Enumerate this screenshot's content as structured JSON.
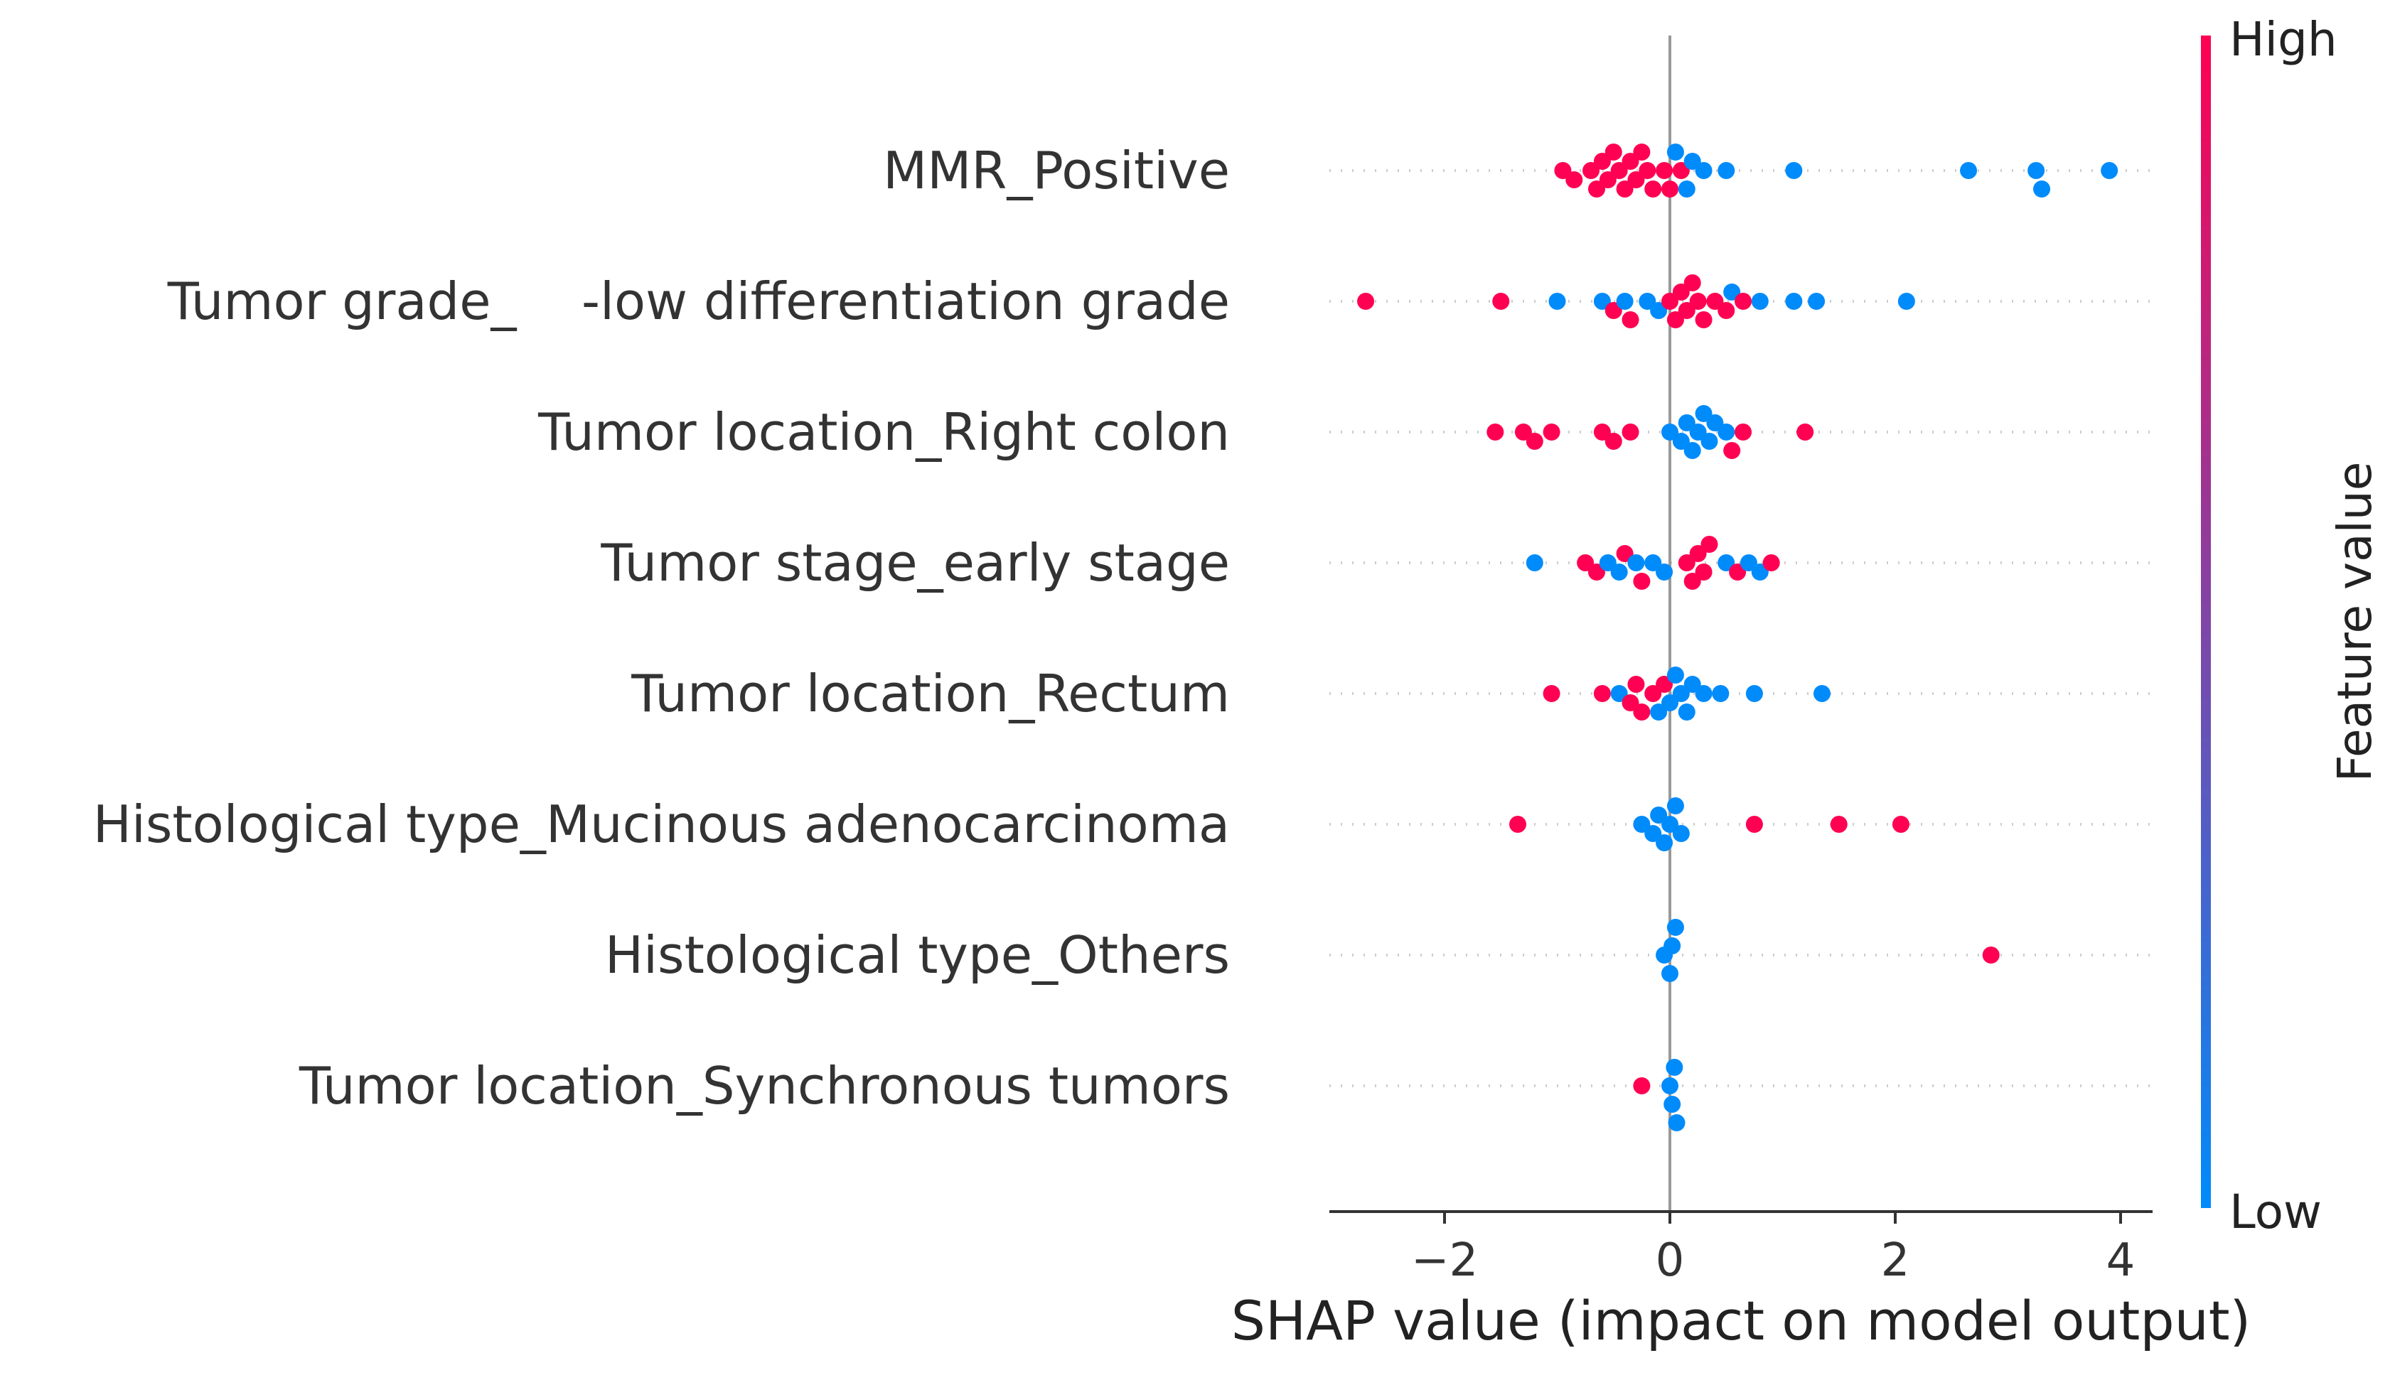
{
  "chart_data": {
    "type": "scatter",
    "subtype": "shap-beeswarm",
    "xlabel": "SHAP value (impact on model output)",
    "xlim": [
      -3.0,
      4.3
    ],
    "xticks": [
      -2,
      0,
      2,
      4
    ],
    "xtick_labels": [
      "−2",
      "0",
      "2",
      "4"
    ],
    "colorbar": {
      "label": "Feature value",
      "high_label": "High",
      "low_label": "Low",
      "high_color": "#ff0052",
      "low_color": "#008bfb"
    },
    "features": [
      {
        "name": "MMR_Positive",
        "points": [
          [
            -0.95,
            "h"
          ],
          [
            -0.85,
            "h"
          ],
          [
            -0.7,
            "h"
          ],
          [
            -0.65,
            "h"
          ],
          [
            -0.6,
            "h"
          ],
          [
            -0.55,
            "h"
          ],
          [
            -0.5,
            "h"
          ],
          [
            -0.45,
            "h"
          ],
          [
            -0.4,
            "h"
          ],
          [
            -0.35,
            "h"
          ],
          [
            -0.3,
            "h"
          ],
          [
            -0.25,
            "h"
          ],
          [
            -0.2,
            "h"
          ],
          [
            -0.15,
            "h"
          ],
          [
            -0.05,
            "h"
          ],
          [
            0.0,
            "h"
          ],
          [
            0.1,
            "h"
          ],
          [
            0.05,
            "l"
          ],
          [
            0.15,
            "l"
          ],
          [
            0.2,
            "l"
          ],
          [
            0.3,
            "l"
          ],
          [
            0.5,
            "l"
          ],
          [
            1.1,
            "l"
          ],
          [
            2.65,
            "l"
          ],
          [
            3.25,
            "l"
          ],
          [
            3.3,
            "l"
          ],
          [
            3.9,
            "l"
          ]
        ]
      },
      {
        "name": "Tumor grade_    -low differentiation grade",
        "points": [
          [
            -2.7,
            "h"
          ],
          [
            -1.5,
            "h"
          ],
          [
            -1.0,
            "l"
          ],
          [
            -0.6,
            "l"
          ],
          [
            -0.5,
            "h"
          ],
          [
            -0.4,
            "l"
          ],
          [
            -0.35,
            "h"
          ],
          [
            -0.2,
            "l"
          ],
          [
            -0.1,
            "l"
          ],
          [
            0.0,
            "h"
          ],
          [
            0.05,
            "h"
          ],
          [
            0.1,
            "h"
          ],
          [
            0.15,
            "h"
          ],
          [
            0.2,
            "h"
          ],
          [
            0.25,
            "h"
          ],
          [
            0.3,
            "h"
          ],
          [
            0.4,
            "h"
          ],
          [
            0.5,
            "h"
          ],
          [
            0.55,
            "l"
          ],
          [
            0.65,
            "h"
          ],
          [
            0.8,
            "l"
          ],
          [
            1.1,
            "l"
          ],
          [
            1.3,
            "l"
          ],
          [
            2.1,
            "l"
          ]
        ]
      },
      {
        "name": "Tumor location_Right colon",
        "points": [
          [
            -1.55,
            "h"
          ],
          [
            -1.3,
            "h"
          ],
          [
            -1.2,
            "h"
          ],
          [
            -1.05,
            "h"
          ],
          [
            -0.6,
            "h"
          ],
          [
            -0.5,
            "h"
          ],
          [
            -0.35,
            "h"
          ],
          [
            0.0,
            "l"
          ],
          [
            0.1,
            "l"
          ],
          [
            0.15,
            "l"
          ],
          [
            0.2,
            "l"
          ],
          [
            0.25,
            "l"
          ],
          [
            0.3,
            "l"
          ],
          [
            0.35,
            "l"
          ],
          [
            0.4,
            "l"
          ],
          [
            0.5,
            "l"
          ],
          [
            0.55,
            "h"
          ],
          [
            0.65,
            "h"
          ],
          [
            1.2,
            "h"
          ]
        ]
      },
      {
        "name": "Tumor stage_early stage",
        "points": [
          [
            -1.2,
            "l"
          ],
          [
            -0.75,
            "h"
          ],
          [
            -0.65,
            "h"
          ],
          [
            -0.55,
            "l"
          ],
          [
            -0.45,
            "l"
          ],
          [
            -0.4,
            "h"
          ],
          [
            -0.3,
            "l"
          ],
          [
            -0.25,
            "h"
          ],
          [
            -0.15,
            "l"
          ],
          [
            -0.05,
            "l"
          ],
          [
            0.15,
            "h"
          ],
          [
            0.2,
            "h"
          ],
          [
            0.25,
            "h"
          ],
          [
            0.3,
            "h"
          ],
          [
            0.35,
            "h"
          ],
          [
            0.5,
            "l"
          ],
          [
            0.6,
            "h"
          ],
          [
            0.7,
            "l"
          ],
          [
            0.8,
            "l"
          ],
          [
            0.9,
            "h"
          ]
        ]
      },
      {
        "name": "Tumor location_Rectum",
        "points": [
          [
            -1.05,
            "h"
          ],
          [
            -0.6,
            "h"
          ],
          [
            -0.45,
            "l"
          ],
          [
            -0.35,
            "h"
          ],
          [
            -0.3,
            "h"
          ],
          [
            -0.25,
            "h"
          ],
          [
            -0.15,
            "h"
          ],
          [
            -0.1,
            "l"
          ],
          [
            -0.05,
            "h"
          ],
          [
            0.0,
            "l"
          ],
          [
            0.05,
            "l"
          ],
          [
            0.1,
            "l"
          ],
          [
            0.15,
            "l"
          ],
          [
            0.2,
            "l"
          ],
          [
            0.3,
            "l"
          ],
          [
            0.45,
            "l"
          ],
          [
            0.75,
            "l"
          ],
          [
            1.35,
            "l"
          ]
        ]
      },
      {
        "name": "Histological type_Mucinous adenocarcinoma",
        "points": [
          [
            -1.35,
            "h"
          ],
          [
            -0.25,
            "l"
          ],
          [
            -0.15,
            "l"
          ],
          [
            -0.1,
            "l"
          ],
          [
            -0.05,
            "l"
          ],
          [
            0.0,
            "l"
          ],
          [
            0.05,
            "l"
          ],
          [
            0.1,
            "l"
          ],
          [
            0.75,
            "h"
          ],
          [
            1.5,
            "h"
          ],
          [
            2.05,
            "h"
          ]
        ]
      },
      {
        "name": "Histological type_Others",
        "points": [
          [
            -0.05,
            "l"
          ],
          [
            0.0,
            "l"
          ],
          [
            0.02,
            "l"
          ],
          [
            0.05,
            "l"
          ],
          [
            2.85,
            "h"
          ]
        ]
      },
      {
        "name": "Tumor location_Synchronous tumors",
        "points": [
          [
            -0.25,
            "h"
          ],
          [
            0.0,
            "l"
          ],
          [
            0.02,
            "l"
          ],
          [
            0.04,
            "l"
          ],
          [
            0.06,
            "l"
          ]
        ]
      }
    ]
  }
}
